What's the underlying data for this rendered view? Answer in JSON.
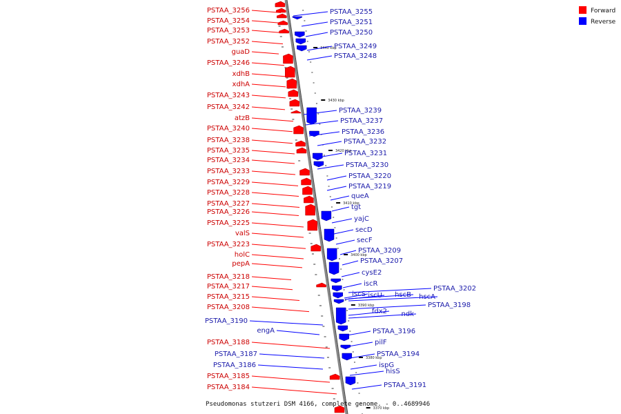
{
  "caption": "Pseudomonas stutzeri DSM 4166, complete genome. - 0..4689946",
  "legend": [
    {
      "label": "Forward",
      "color": "#ff0000"
    },
    {
      "label": "Reverse",
      "color": "#0000ff"
    }
  ],
  "colors": {
    "forward": "#ff0000",
    "reverse": "#0000ff",
    "backbone": "#888888"
  },
  "ticks": [
    "3440 kbp",
    "3430 kbp",
    "3420 kbp",
    "3410 kbp",
    "3400 kbp",
    "3390 kbp",
    "3380 kbp",
    "3370 kbp"
  ],
  "forward_genes": [
    "PSTAA_3256",
    "PSTAA_3254",
    "PSTAA_3253",
    "PSTAA_3252",
    "guaD",
    "PSTAA_3246",
    "xdhB",
    "xdhA",
    "PSTAA_3243",
    "PSTAA_3242",
    "atzB",
    "PSTAA_3240",
    "PSTAA_3238",
    "PSTAA_3235",
    "PSTAA_3234",
    "PSTAA_3233",
    "PSTAA_3229",
    "PSTAA_3228",
    "PSTAA_3227",
    "PSTAA_3226",
    "PSTAA_3225",
    "valS",
    "PSTAA_3223",
    "holC",
    "pepA",
    "PSTAA_3218",
    "PSTAA_3217",
    "PSTAA_3215",
    "PSTAA_3208",
    "PSTAA_3188",
    "PSTAA_3185",
    "PSTAA_3184"
  ],
  "reverse_genes": [
    "PSTAA_3255",
    "PSTAA_3251",
    "PSTAA_3250",
    "PSTAA_3249",
    "PSTAA_3248",
    "PSTAA_3239",
    "PSTAA_3237",
    "PSTAA_3236",
    "PSTAA_3232",
    "PSTAA_3231",
    "PSTAA_3230",
    "PSTAA_3220",
    "PSTAA_3219",
    "queA",
    "tgt",
    "yajC",
    "secD",
    "secF",
    "PSTAA_3209",
    "PSTAA_3207",
    "cysE2",
    "iscR",
    "iscS",
    "iscU",
    "hscB",
    "PSTAA_3202",
    "hscA",
    "PSTAA_3198",
    "fdx2",
    "ndk",
    "PSTAA_3196",
    "pilF",
    "PSTAA_3194",
    "ispG",
    "hisS",
    "PSTAA_3191",
    "PSTAA_3190",
    "engA",
    "PSTAA_3187",
    "PSTAA_3186"
  ]
}
